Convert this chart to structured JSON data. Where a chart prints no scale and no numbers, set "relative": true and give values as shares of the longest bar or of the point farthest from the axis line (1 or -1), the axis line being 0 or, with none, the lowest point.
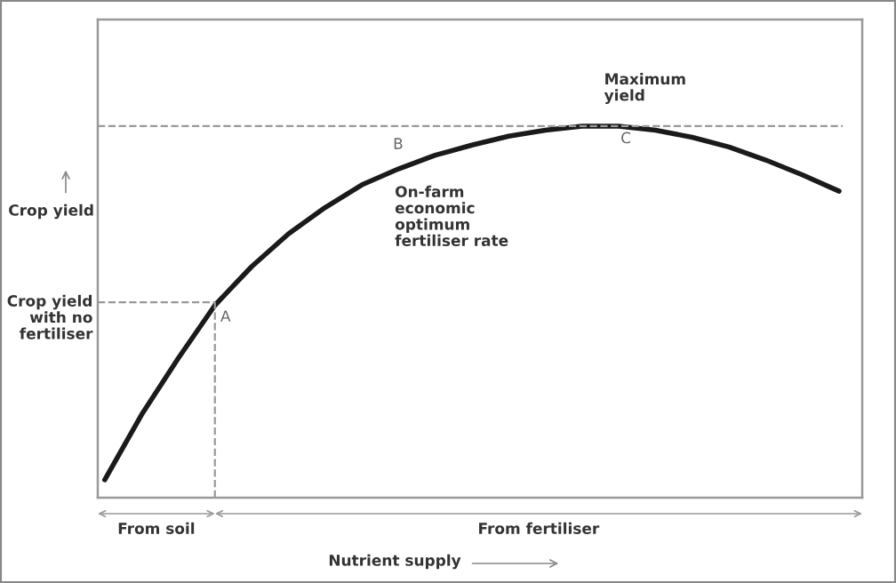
{
  "chart_data": {
    "type": "line",
    "relative": true,
    "categories": [
      null,
      null,
      null,
      null,
      null,
      null,
      null,
      null,
      null,
      null,
      null,
      null,
      null,
      null,
      null,
      null,
      null,
      null,
      null,
      null,
      null
    ],
    "values": [
      0.048,
      0.223,
      0.375,
      0.518,
      0.622,
      0.71,
      0.781,
      0.842,
      0.885,
      0.922,
      0.949,
      0.973,
      0.989,
      1.0,
      1.0,
      0.989,
      0.97,
      0.944,
      0.909,
      0.869,
      0.825
    ],
    "color": "#1a1a1a",
    "ylabel": "Crop yield",
    "xlabel": "Nutrient supply",
    "annotations": [
      "Maximum\nyield",
      "A",
      "B",
      "C",
      "On-farm\neconomic\noptimum\nfertiliser rate",
      "From soil",
      "From fertiliser"
    ],
    "ref_lines": [
      {
        "axis": "y",
        "value": 1.0,
        "color": "#999999",
        "line_style": "dashed"
      },
      {
        "axis": "y",
        "value": 0.526,
        "label": "Crop yield\nwith no\nfertiliser",
        "color": "#999999",
        "line_style": "dashed"
      }
    ],
    "grid": false,
    "legend": false,
    "line_style": "solid",
    "marker": "none"
  }
}
